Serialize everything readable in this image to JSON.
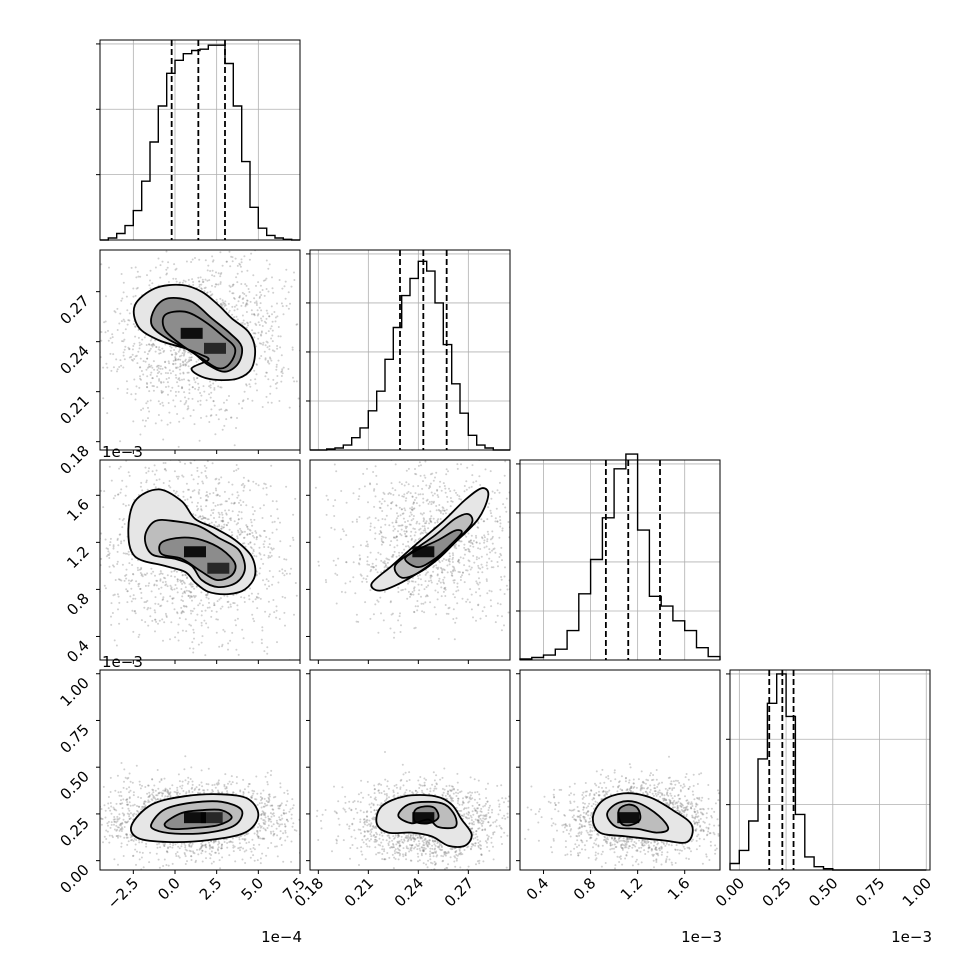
{
  "chart_data": {
    "type": "corner",
    "parameters": [
      {
        "axis_min": -4.5,
        "axis_max": 7.5,
        "ticks": [
          -2.5,
          0.0,
          2.5,
          5.0,
          7.5
        ],
        "tick_labels": [
          "−2.5",
          "0.0",
          "2.5",
          "5.0",
          "7.5"
        ],
        "offset_text": "1e−4",
        "quantiles": [
          -0.2,
          1.4,
          3.0
        ],
        "hist_max_count": 3,
        "hist_ticks": [
          1,
          2,
          3
        ]
      },
      {
        "axis_min": 0.175,
        "axis_max": 0.295,
        "ticks": [
          0.18,
          0.21,
          0.24,
          0.27
        ],
        "tick_labels": [
          "0.18",
          "0.21",
          "0.24",
          "0.27"
        ],
        "offset_text": "",
        "quantiles": [
          0.229,
          0.243,
          0.257
        ],
        "hist_max_count": 4,
        "hist_ticks": [
          1,
          2,
          3,
          4
        ]
      },
      {
        "axis_min": 0.2,
        "axis_max": 1.9,
        "ticks": [
          0.4,
          0.8,
          1.2,
          1.6
        ],
        "tick_labels": [
          "0.4",
          "0.8",
          "1.2",
          "1.6"
        ],
        "offset_text": "1e−3",
        "quantiles": [
          0.93,
          1.12,
          1.39
        ],
        "hist_max_count": 4,
        "hist_ticks": [
          1,
          2,
          3,
          4
        ]
      },
      {
        "axis_min": -0.05,
        "axis_max": 1.02,
        "ticks": [
          0.0,
          0.25,
          0.5,
          0.75,
          1.0
        ],
        "tick_labels": [
          "0.00",
          "0.25",
          "0.50",
          "0.75",
          "1.00"
        ],
        "offset_text": "1e−3",
        "quantiles": [
          0.16,
          0.23,
          0.29
        ],
        "hist_max_count": 3,
        "hist_ticks": [
          1,
          2,
          3
        ]
      }
    ],
    "histograms": [
      {
        "edges": [
          -4.5,
          -4.0,
          -3.5,
          -3.0,
          -2.5,
          -2.0,
          -1.5,
          -1.0,
          -0.5,
          0.0,
          0.5,
          1.0,
          1.5,
          2.0,
          2.5,
          3.0,
          3.5,
          4.0,
          4.5,
          5.0,
          5.5,
          6.0,
          6.5,
          7.0,
          7.5
        ],
        "counts": [
          0.0,
          0.03,
          0.1,
          0.22,
          0.45,
          0.9,
          1.5,
          2.05,
          2.55,
          2.75,
          2.85,
          2.9,
          2.92,
          2.98,
          2.98,
          2.7,
          2.05,
          1.2,
          0.5,
          0.18,
          0.07,
          0.03,
          0.01,
          0.0
        ]
      },
      {
        "edges": [
          0.175,
          0.18,
          0.185,
          0.19,
          0.195,
          0.2,
          0.205,
          0.21,
          0.215,
          0.22,
          0.225,
          0.23,
          0.235,
          0.24,
          0.245,
          0.25,
          0.255,
          0.26,
          0.265,
          0.27,
          0.275,
          0.28,
          0.285,
          0.29,
          0.295
        ],
        "counts": [
          0.0,
          0.0,
          0.02,
          0.04,
          0.1,
          0.25,
          0.45,
          0.8,
          1.2,
          1.85,
          2.5,
          3.15,
          3.5,
          3.85,
          3.65,
          3.0,
          2.15,
          1.35,
          0.75,
          0.3,
          0.1,
          0.04,
          0.0,
          0.0
        ]
      },
      {
        "edges": [
          0.2,
          0.3,
          0.4,
          0.5,
          0.6,
          0.7,
          0.8,
          0.9,
          1.0,
          1.1,
          1.2,
          1.3,
          1.4,
          1.5,
          1.6,
          1.7,
          1.8,
          1.9
        ],
        "counts": [
          0.02,
          0.05,
          0.1,
          0.22,
          0.6,
          1.35,
          2.05,
          2.9,
          3.9,
          4.2,
          2.65,
          1.3,
          1.1,
          0.8,
          0.6,
          0.25,
          0.07
        ]
      },
      {
        "edges": [
          -0.05,
          0.0,
          0.05,
          0.1,
          0.15,
          0.2,
          0.25,
          0.3,
          0.35,
          0.4,
          0.45,
          0.5,
          0.55,
          0.6,
          0.65,
          0.7,
          0.75,
          0.8,
          0.85,
          0.9,
          0.95,
          1.0
        ],
        "counts": [
          0.1,
          0.3,
          0.75,
          1.7,
          2.55,
          3.0,
          2.35,
          0.85,
          0.2,
          0.05,
          0.02,
          0.0,
          0.0,
          0.0,
          0.0,
          0.0,
          0.0,
          0.0,
          0.0,
          0.0,
          0.0
        ]
      }
    ],
    "pairs": [
      {
        "x": 0,
        "y": 1,
        "peaks": [
          [
            1.0,
            0.245,
            1.0
          ],
          [
            2.4,
            0.236,
            0.8
          ]
        ],
        "contours": [
          [
            [
              -1.2,
              0.26
            ],
            [
              -0.4,
              0.266
            ],
            [
              1.0,
              0.264
            ],
            [
              2.2,
              0.254
            ],
            [
              3.3,
              0.245
            ],
            [
              4.0,
              0.237
            ],
            [
              3.8,
              0.227
            ],
            [
              3.0,
              0.222
            ],
            [
              2.0,
              0.226
            ],
            [
              1.0,
              0.234
            ],
            [
              -0.5,
              0.242
            ],
            [
              -1.4,
              0.25
            ]
          ],
          [
            [
              -0.6,
              0.256
            ],
            [
              0.6,
              0.258
            ],
            [
              1.8,
              0.252
            ],
            [
              2.8,
              0.244
            ],
            [
              3.6,
              0.236
            ],
            [
              3.3,
              0.227
            ],
            [
              2.6,
              0.224
            ],
            [
              1.6,
              0.23
            ],
            [
              0.4,
              0.238
            ],
            [
              -0.6,
              0.247
            ]
          ],
          [
            [
              -2.4,
              0.262
            ],
            [
              -1.2,
              0.272
            ],
            [
              0.4,
              0.274
            ],
            [
              1.6,
              0.27
            ],
            [
              2.6,
              0.262
            ],
            [
              3.4,
              0.254
            ],
            [
              4.4,
              0.246
            ],
            [
              4.8,
              0.236
            ],
            [
              4.6,
              0.224
            ],
            [
              3.8,
              0.218
            ],
            [
              2.6,
              0.217
            ],
            [
              1.6,
              0.219
            ],
            [
              1.0,
              0.224
            ],
            [
              2.0,
              0.229
            ],
            [
              1.6,
              0.232
            ],
            [
              0.6,
              0.236
            ],
            [
              -1.0,
              0.241
            ],
            [
              -2.2,
              0.249
            ]
          ]
        ]
      },
      {
        "x": 0,
        "y": 2,
        "peaks": [
          [
            1.2,
            1.12,
            1.0
          ],
          [
            2.6,
            0.98,
            0.8
          ]
        ],
        "contours": [
          [
            [
              -0.8,
              1.2
            ],
            [
              0.4,
              1.24
            ],
            [
              1.6,
              1.22
            ],
            [
              2.8,
              1.14
            ],
            [
              3.6,
              1.02
            ],
            [
              3.4,
              0.92
            ],
            [
              2.5,
              0.88
            ],
            [
              1.5,
              0.96
            ],
            [
              0.4,
              1.06
            ],
            [
              -0.8,
              1.1
            ]
          ],
          [
            [
              -1.8,
              1.25
            ],
            [
              -1.2,
              1.38
            ],
            [
              0.0,
              1.38
            ],
            [
              1.4,
              1.34
            ],
            [
              2.6,
              1.24
            ],
            [
              3.8,
              1.14
            ],
            [
              4.2,
              0.98
            ],
            [
              3.7,
              0.86
            ],
            [
              2.6,
              0.82
            ],
            [
              1.6,
              0.88
            ],
            [
              1.0,
              1.0
            ],
            [
              0.0,
              1.06
            ],
            [
              -1.4,
              1.1
            ]
          ],
          [
            [
              -2.8,
              1.3
            ],
            [
              -2.4,
              1.55
            ],
            [
              -1.0,
              1.65
            ],
            [
              0.4,
              1.55
            ],
            [
              1.2,
              1.4
            ],
            [
              2.4,
              1.32
            ],
            [
              3.6,
              1.22
            ],
            [
              4.6,
              1.08
            ],
            [
              4.8,
              0.92
            ],
            [
              4.2,
              0.8
            ],
            [
              3.2,
              0.76
            ],
            [
              2.0,
              0.78
            ],
            [
              1.2,
              0.86
            ],
            [
              0.6,
              0.95
            ],
            [
              -0.6,
              1.0
            ],
            [
              -2.4,
              1.08
            ]
          ]
        ]
      },
      {
        "x": 1,
        "y": 2,
        "peaks": [
          [
            0.243,
            1.12,
            1.0
          ]
        ],
        "contours": [
          [
            [
              0.232,
              1.06
            ],
            [
              0.24,
              1.14
            ],
            [
              0.252,
              1.22
            ],
            [
              0.262,
              1.3
            ],
            [
              0.266,
              1.28
            ],
            [
              0.258,
              1.16
            ],
            [
              0.25,
              1.06
            ],
            [
              0.24,
              0.99
            ]
          ],
          [
            [
              0.226,
              1.0
            ],
            [
              0.236,
              1.12
            ],
            [
              0.25,
              1.26
            ],
            [
              0.262,
              1.4
            ],
            [
              0.27,
              1.44
            ],
            [
              0.272,
              1.36
            ],
            [
              0.262,
              1.2
            ],
            [
              0.252,
              1.06
            ],
            [
              0.24,
              0.94
            ],
            [
              0.23,
              0.9
            ]
          ],
          [
            [
              0.212,
              0.85
            ],
            [
              0.224,
              1.0
            ],
            [
              0.24,
              1.2
            ],
            [
              0.255,
              1.38
            ],
            [
              0.268,
              1.56
            ],
            [
              0.278,
              1.66
            ],
            [
              0.282,
              1.6
            ],
            [
              0.276,
              1.4
            ],
            [
              0.262,
              1.2
            ],
            [
              0.246,
              1.0
            ],
            [
              0.23,
              0.86
            ],
            [
              0.217,
              0.79
            ]
          ]
        ]
      },
      {
        "x": 0,
        "y": 3,
        "peaks": [
          [
            1.2,
            0.23,
            1.0
          ],
          [
            2.2,
            0.23,
            0.8
          ]
        ],
        "contours": [
          [
            [
              -0.6,
              0.2
            ],
            [
              0.4,
              0.255
            ],
            [
              1.6,
              0.27
            ],
            [
              2.8,
              0.27
            ],
            [
              3.4,
              0.23
            ],
            [
              2.6,
              0.19
            ],
            [
              1.2,
              0.175
            ],
            [
              -0.2,
              0.17
            ]
          ],
          [
            [
              -1.4,
              0.2
            ],
            [
              -0.6,
              0.275
            ],
            [
              1.0,
              0.31
            ],
            [
              2.8,
              0.315
            ],
            [
              4.0,
              0.27
            ],
            [
              3.6,
              0.19
            ],
            [
              2.0,
              0.15
            ],
            [
              0.0,
              0.145
            ],
            [
              -1.2,
              0.165
            ]
          ],
          [
            [
              -2.6,
              0.19
            ],
            [
              -1.4,
              0.3
            ],
            [
              0.6,
              0.345
            ],
            [
              2.8,
              0.355
            ],
            [
              4.4,
              0.33
            ],
            [
              5.0,
              0.24
            ],
            [
              4.2,
              0.15
            ],
            [
              2.0,
              0.11
            ],
            [
              -0.4,
              0.1
            ],
            [
              -2.2,
              0.12
            ]
          ]
        ]
      },
      {
        "x": 1,
        "y": 3,
        "peaks": [
          [
            0.243,
            0.23,
            1.0
          ]
        ],
        "contours": [
          [
            [
              0.238,
              0.27
            ],
            [
              0.244,
              0.29
            ],
            [
              0.25,
              0.28
            ],
            [
              0.252,
              0.23
            ],
            [
              0.246,
              0.2
            ],
            [
              0.238,
              0.21
            ]
          ],
          [
            [
              0.228,
              0.24
            ],
            [
              0.234,
              0.3
            ],
            [
              0.246,
              0.315
            ],
            [
              0.256,
              0.3
            ],
            [
              0.262,
              0.24
            ],
            [
              0.262,
              0.18
            ],
            [
              0.252,
              0.18
            ],
            [
              0.246,
              0.22
            ],
            [
              0.236,
              0.2
            ]
          ],
          [
            [
              0.215,
              0.2
            ],
            [
              0.218,
              0.29
            ],
            [
              0.232,
              0.345
            ],
            [
              0.25,
              0.345
            ],
            [
              0.26,
              0.3
            ],
            [
              0.266,
              0.22
            ],
            [
              0.272,
              0.14
            ],
            [
              0.268,
              0.08
            ],
            [
              0.258,
              0.08
            ],
            [
              0.248,
              0.13
            ],
            [
              0.236,
              0.15
            ],
            [
              0.222,
              0.15
            ]
          ]
        ]
      },
      {
        "x": 2,
        "y": 3,
        "peaks": [
          [
            1.12,
            0.23,
            1.0
          ]
        ],
        "contours": [
          [
            [
              1.04,
              0.27
            ],
            [
              1.12,
              0.3
            ],
            [
              1.2,
              0.28
            ],
            [
              1.22,
              0.22
            ],
            [
              1.14,
              0.19
            ],
            [
              1.06,
              0.2
            ]
          ],
          [
            [
              0.94,
              0.25
            ],
            [
              1.04,
              0.31
            ],
            [
              1.2,
              0.31
            ],
            [
              1.38,
              0.24
            ],
            [
              1.46,
              0.17
            ],
            [
              1.36,
              0.15
            ],
            [
              1.2,
              0.17
            ],
            [
              1.02,
              0.18
            ]
          ],
          [
            [
              0.82,
              0.23
            ],
            [
              0.9,
              0.32
            ],
            [
              1.08,
              0.36
            ],
            [
              1.3,
              0.34
            ],
            [
              1.5,
              0.27
            ],
            [
              1.66,
              0.19
            ],
            [
              1.62,
              0.1
            ],
            [
              1.4,
              0.11
            ],
            [
              1.1,
              0.13
            ],
            [
              0.88,
              0.15
            ]
          ]
        ]
      }
    ]
  }
}
